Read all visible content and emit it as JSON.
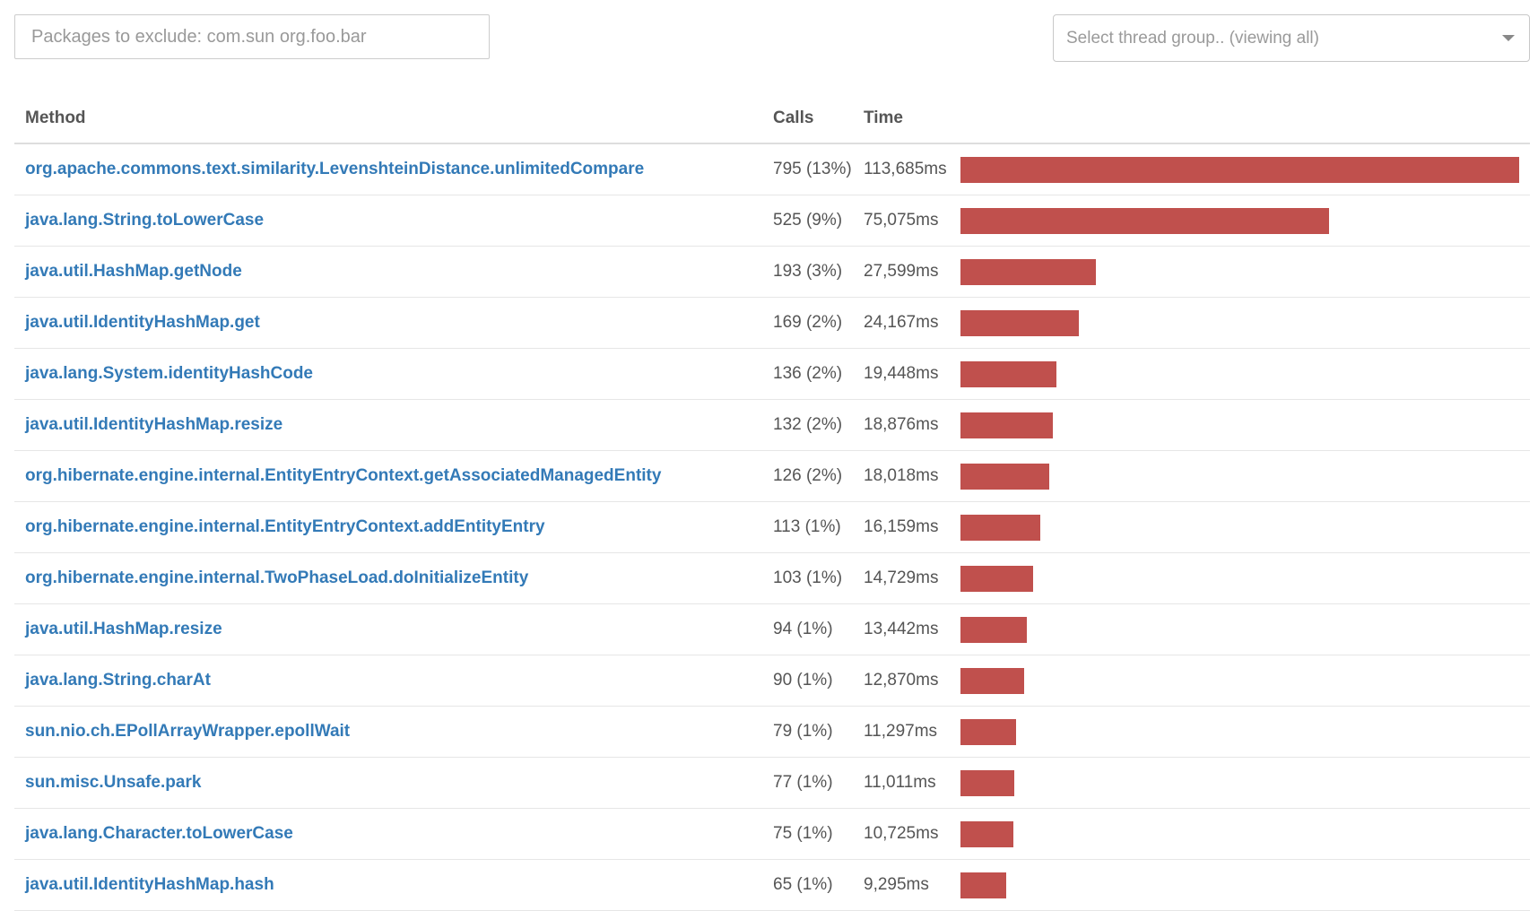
{
  "filters": {
    "exclude_placeholder": "Packages to exclude: com.sun org.foo.bar",
    "thread_group_select": "Select thread group.. (viewing all)"
  },
  "table": {
    "headers": {
      "method": "Method",
      "calls": "Calls",
      "time": "Time"
    },
    "max_time_ms": 113685,
    "bar_color": "#c0504d",
    "link_color": "#337ab7",
    "rows": [
      {
        "method": "org.apache.commons.text.similarity.LevenshteinDistance.unlimitedCompare",
        "calls": "795 (13%)",
        "time": "113,685ms",
        "time_ms": 113685
      },
      {
        "method": "java.lang.String.toLowerCase",
        "calls": "525 (9%)",
        "time": "75,075ms",
        "time_ms": 75075
      },
      {
        "method": "java.util.HashMap.getNode",
        "calls": "193 (3%)",
        "time": "27,599ms",
        "time_ms": 27599
      },
      {
        "method": "java.util.IdentityHashMap.get",
        "calls": "169 (2%)",
        "time": "24,167ms",
        "time_ms": 24167
      },
      {
        "method": "java.lang.System.identityHashCode",
        "calls": "136 (2%)",
        "time": "19,448ms",
        "time_ms": 19448
      },
      {
        "method": "java.util.IdentityHashMap.resize",
        "calls": "132 (2%)",
        "time": "18,876ms",
        "time_ms": 18876
      },
      {
        "method": "org.hibernate.engine.internal.EntityEntryContext.getAssociatedManagedEntity",
        "calls": "126 (2%)",
        "time": "18,018ms",
        "time_ms": 18018
      },
      {
        "method": "org.hibernate.engine.internal.EntityEntryContext.addEntityEntry",
        "calls": "113 (1%)",
        "time": "16,159ms",
        "time_ms": 16159
      },
      {
        "method": "org.hibernate.engine.internal.TwoPhaseLoad.doInitializeEntity",
        "calls": "103 (1%)",
        "time": "14,729ms",
        "time_ms": 14729
      },
      {
        "method": "java.util.HashMap.resize",
        "calls": "94 (1%)",
        "time": "13,442ms",
        "time_ms": 13442
      },
      {
        "method": "java.lang.String.charAt",
        "calls": "90 (1%)",
        "time": "12,870ms",
        "time_ms": 12870
      },
      {
        "method": "sun.nio.ch.EPollArrayWrapper.epollWait",
        "calls": "79 (1%)",
        "time": "11,297ms",
        "time_ms": 11297
      },
      {
        "method": "sun.misc.Unsafe.park",
        "calls": "77 (1%)",
        "time": "11,011ms",
        "time_ms": 11011
      },
      {
        "method": "java.lang.Character.toLowerCase",
        "calls": "75 (1%)",
        "time": "10,725ms",
        "time_ms": 10725
      },
      {
        "method": "java.util.IdentityHashMap.hash",
        "calls": "65 (1%)",
        "time": "9,295ms",
        "time_ms": 9295
      }
    ]
  }
}
